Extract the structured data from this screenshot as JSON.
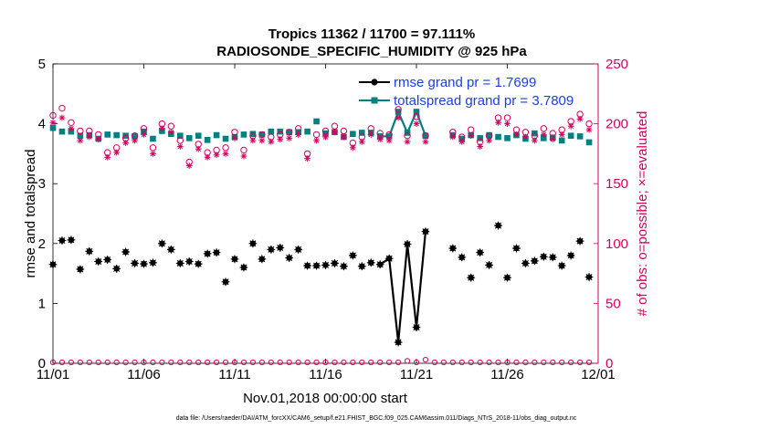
{
  "chart_data": {
    "type": "line",
    "title": "Tropics 11362 / 11700 = 97.111%",
    "subtitle": "RADIOSONDE_SPECIFIC_HUMIDITY @ 925 hPa",
    "xlabel": "Nov.01,2018 00:00:00 start",
    "ylabel_left": "rmse and totalspread",
    "ylabel_right": "# of obs: o=possible; ×=evaluated",
    "xlim": [
      0,
      30
    ],
    "ylim_left": [
      0,
      5
    ],
    "ylim_right": [
      0,
      250
    ],
    "x_ticks": [
      0,
      5,
      10,
      15,
      20,
      25,
      30
    ],
    "x_tick_labels": [
      "11/01",
      "11/06",
      "11/11",
      "11/16",
      "11/21",
      "11/26",
      "12/01"
    ],
    "y_left_ticks": [
      "0",
      "1",
      "2",
      "3",
      "4",
      "5"
    ],
    "y_right_ticks": [
      "0",
      "50",
      "100",
      "150",
      "200",
      "250"
    ],
    "x": [
      0,
      0.5,
      1,
      1.5,
      2,
      2.5,
      3,
      3.5,
      4,
      4.5,
      5,
      5.5,
      6,
      6.5,
      7,
      7.5,
      8,
      8.5,
      9,
      9.5,
      10,
      10.5,
      11,
      11.5,
      12,
      12.5,
      13,
      13.5,
      14,
      14.5,
      15,
      15.5,
      16,
      16.5,
      17,
      17.5,
      18,
      18.5,
      19,
      19.5,
      20,
      20.5,
      21,
      21.5,
      22,
      22.5,
      23,
      23.5,
      24,
      24.5,
      25,
      25.5,
      26,
      26.5,
      27,
      27.5,
      28,
      28.5,
      29,
      29.5
    ],
    "series": [
      {
        "name": "rmse",
        "legend": "rmse grand pr = 1.7699",
        "color": "#000000",
        "axis": "left",
        "values": [
          1.65,
          2.05,
          2.06,
          1.57,
          1.87,
          1.7,
          1.73,
          1.58,
          1.86,
          1.67,
          1.66,
          1.68,
          2.0,
          1.9,
          1.67,
          1.7,
          1.66,
          1.83,
          1.85,
          1.36,
          1.74,
          1.6,
          2.0,
          1.74,
          1.9,
          1.93,
          1.76,
          1.9,
          1.63,
          1.63,
          1.64,
          1.67,
          1.62,
          1.8,
          1.62,
          1.68,
          1.65,
          1.75,
          0.35,
          1.99,
          0.6,
          2.2,
          null,
          null,
          1.92,
          1.77,
          1.43,
          1.85,
          1.64,
          2.3,
          1.43,
          1.92,
          1.67,
          1.71,
          1.78,
          1.77,
          1.63,
          1.8,
          2.04,
          1.44
        ],
        "segments": [
          [
            36,
            41
          ]
        ]
      },
      {
        "name": "totalspread",
        "legend": "totalspread grand pr = 3.7809",
        "color": "#008080",
        "axis": "left",
        "values": [
          3.93,
          3.87,
          3.87,
          3.8,
          3.81,
          3.75,
          3.82,
          3.81,
          3.8,
          3.79,
          3.87,
          3.75,
          3.88,
          3.83,
          3.8,
          3.76,
          3.8,
          3.73,
          3.81,
          3.75,
          3.78,
          3.82,
          3.83,
          3.82,
          3.87,
          3.87,
          3.86,
          3.86,
          3.87,
          4.04,
          3.84,
          3.86,
          3.78,
          3.83,
          3.85,
          3.85,
          3.79,
          3.79,
          4.2,
          3.85,
          4.2,
          3.8,
          null,
          null,
          3.81,
          3.75,
          3.81,
          3.76,
          3.81,
          3.78,
          3.76,
          3.81,
          3.75,
          3.84,
          3.76,
          3.77,
          3.72,
          3.8,
          3.79,
          3.69
        ],
        "segments": [
          [
            36,
            41
          ]
        ]
      },
      {
        "name": "obs possible",
        "color": "#d6005f",
        "axis": "right",
        "marker": "circle",
        "values": [
          207,
          213,
          201,
          194,
          194,
          191,
          176,
          180,
          188,
          190,
          196,
          180,
          200,
          198,
          186,
          168,
          183,
          176,
          178,
          180,
          193,
          178,
          190,
          191,
          189,
          191,
          193,
          196,
          175,
          191,
          194,
          198,
          194,
          184,
          189,
          196,
          192,
          191,
          212,
          190,
          206,
          190,
          null,
          null,
          193,
          189,
          195,
          185,
          190,
          205,
          205,
          195,
          193,
          190,
          196,
          192,
          195,
          202,
          208,
          200
        ]
      },
      {
        "name": "obs evaluated",
        "color": "#d6005f",
        "axis": "right",
        "marker": "asterisk",
        "values": [
          201,
          205,
          196,
          186,
          189,
          187,
          172,
          176,
          184,
          186,
          191,
          175,
          196,
          193,
          181,
          165,
          179,
          172,
          174,
          175,
          188,
          173,
          186,
          186,
          185,
          187,
          188,
          191,
          171,
          186,
          189,
          193,
          189,
          180,
          185,
          191,
          187,
          186,
          205,
          185,
          200,
          185,
          null,
          null,
          189,
          185,
          190,
          181,
          186,
          201,
          200,
          191,
          189,
          186,
          191,
          187,
          191,
          198,
          204,
          195
        ]
      },
      {
        "name": "obs bottom possible",
        "color": "#d6005f",
        "axis": "right",
        "marker": "circle-small",
        "values": [
          0,
          0,
          0,
          0,
          0,
          0,
          0,
          0,
          0,
          0,
          0,
          0,
          0,
          0,
          0,
          0,
          0,
          0,
          0,
          0,
          0,
          0,
          0,
          0,
          0,
          0,
          0,
          0,
          0,
          0,
          0,
          0,
          0,
          0,
          0,
          0,
          0,
          0,
          0,
          2,
          0,
          3,
          0,
          0,
          0,
          0,
          0,
          0,
          0,
          0,
          0,
          0,
          0,
          0,
          0,
          0,
          0,
          0,
          0,
          0
        ]
      }
    ],
    "footnote": "data file: /Users/raeder/DAI/ATM_forcXX/CAM6_setup/f.e21.FHIST_BGC.f09_025.CAM6assim.011/Diags_NTrS_2018-11/obs_diag_output.nc"
  }
}
